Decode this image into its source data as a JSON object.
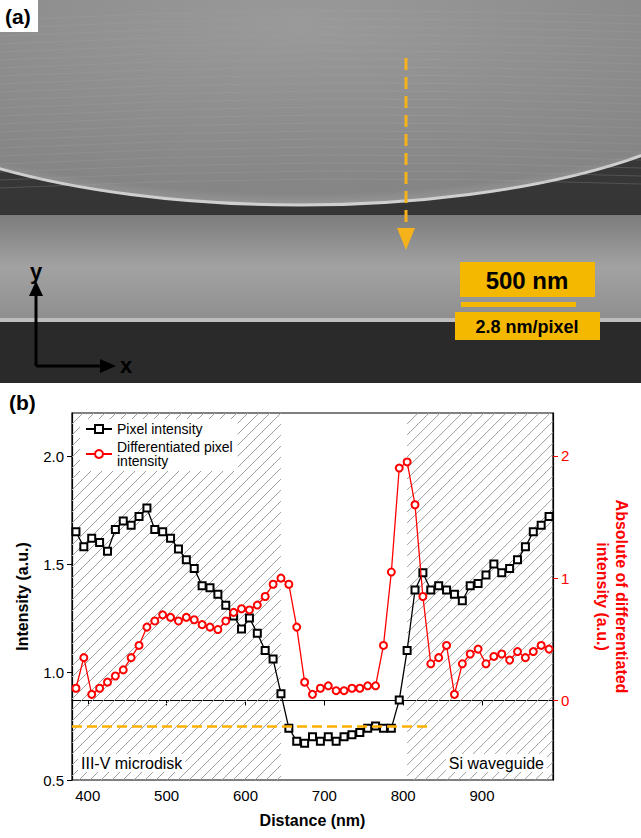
{
  "panel_a": {
    "label": "(a)",
    "scale_bar": "500 nm",
    "pixel_size": "2.8 nm/pixel",
    "axis_labels": [
      "x",
      "y"
    ]
  },
  "chart_data": {
    "type": "line",
    "panel_label": "(b)",
    "x_label": "Distance (nm)",
    "y_label": "Intensity (a.u.)",
    "y2_label": "Absolute of differentiated intensity (a.u.)",
    "x": [
      385,
      395,
      405,
      415,
      425,
      435,
      445,
      455,
      465,
      475,
      485,
      495,
      505,
      515,
      525,
      535,
      545,
      555,
      565,
      575,
      585,
      595,
      605,
      615,
      625,
      635,
      645,
      655,
      665,
      675,
      685,
      695,
      705,
      715,
      725,
      735,
      745,
      755,
      765,
      775,
      785,
      795,
      805,
      815,
      825,
      835,
      845,
      855,
      865,
      875,
      885,
      895,
      905,
      915,
      925,
      935,
      945,
      955,
      965,
      975,
      985
    ],
    "series": [
      {
        "name": "Pixel intensity",
        "color": "#000000",
        "marker": "square",
        "values": [
          1.65,
          1.58,
          1.62,
          1.6,
          1.56,
          1.66,
          1.7,
          1.68,
          1.72,
          1.76,
          1.66,
          1.65,
          1.62,
          1.57,
          1.52,
          1.48,
          1.4,
          1.39,
          1.36,
          1.31,
          1.26,
          1.2,
          1.25,
          1.18,
          1.1,
          1.06,
          0.9,
          0.74,
          0.68,
          0.67,
          0.7,
          0.68,
          0.7,
          0.68,
          0.7,
          0.71,
          0.72,
          0.74,
          0.75,
          0.74,
          0.74,
          0.87,
          1.1,
          1.38,
          1.46,
          1.38,
          1.4,
          1.38,
          1.36,
          1.33,
          1.4,
          1.41,
          1.45,
          1.5,
          1.46,
          1.48,
          1.52,
          1.58,
          1.65,
          1.68,
          1.72
        ]
      },
      {
        "name": "Differentiated pixel intensity",
        "color": "#ff0000",
        "marker": "circle",
        "axis": "y2",
        "values": [
          0.1,
          0.35,
          0.05,
          0.1,
          0.15,
          0.2,
          0.25,
          0.35,
          0.45,
          0.6,
          0.65,
          0.7,
          0.68,
          0.65,
          0.68,
          0.66,
          0.62,
          0.6,
          0.58,
          0.65,
          0.72,
          0.75,
          0.74,
          0.78,
          0.85,
          0.95,
          1.0,
          0.95,
          0.6,
          0.15,
          0.05,
          0.1,
          0.12,
          0.08,
          0.08,
          0.1,
          0.1,
          0.12,
          0.12,
          0.45,
          1.05,
          1.9,
          1.95,
          1.6,
          0.85,
          0.3,
          0.35,
          0.45,
          0.05,
          0.3,
          0.38,
          0.42,
          0.3,
          0.36,
          0.38,
          0.33,
          0.4,
          0.35,
          0.4,
          0.45,
          0.42
        ]
      }
    ],
    "xlim": [
      380,
      990
    ],
    "xticks": [
      400,
      500,
      600,
      700,
      800,
      900
    ],
    "ylim": [
      0.5,
      2.2
    ],
    "yticks": [
      0.5,
      {
        "value": 1,
        "label": "1.0"
      },
      1.5,
      {
        "value": 2,
        "label": "2.0"
      }
    ],
    "y2lim": [
      -0.65,
      2.35
    ],
    "y2ticks": [
      0,
      1,
      2
    ],
    "grid": false,
    "legend": "upper left",
    "annotations": [
      {
        "text": "III-V microdisk",
        "x": [
          380,
          645
        ]
      },
      {
        "text": "Si waveguide",
        "x": [
          805,
          990
        ]
      }
    ],
    "reference_line": {
      "y": 0.75,
      "x": [
        380,
        835
      ],
      "color": "#ffb000",
      "line_style": "dashed"
    }
  }
}
